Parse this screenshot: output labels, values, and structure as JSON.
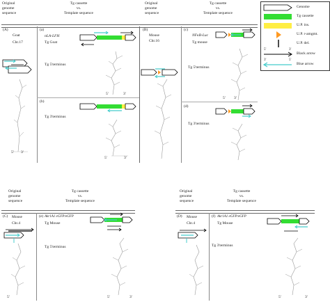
{
  "top": {
    "left_header": {
      "orig": [
        "Original",
        "genome",
        "sequence"
      ],
      "tg": [
        "Tg cassette",
        "vs.",
        "Template sequence"
      ]
    },
    "right_header": {
      "orig": [
        "Original",
        "genome",
        "sequence"
      ],
      "tg": [
        "Tg cassette",
        "vs.",
        "Template sequence"
      ]
    }
  },
  "bottom": {
    "left_header": {
      "orig": [
        "Original",
        "genome",
        "sequence"
      ],
      "tg": [
        "Tg cassette",
        "vs.",
        "Template sequence"
      ]
    },
    "right_header": {
      "orig": [
        "Original",
        "genome",
        "sequence"
      ],
      "tg": [
        "Tg cassette",
        "vs.",
        "Template sequence"
      ]
    }
  },
  "panels": {
    "A": {
      "tag": "(A)",
      "line1": "Goat",
      "line2": "Chr.17"
    },
    "a": {
      "tag": "(a)",
      "gene": "nLA-LFH",
      "line2": "Tg Goat",
      "terminus": "Tg 5'terminus"
    },
    "b": {
      "tag": "(b)",
      "terminus": "Tg 3'terminus"
    },
    "B": {
      "tag": "(B)",
      "line1": "Mouse",
      "line2": "Chr.16"
    },
    "c": {
      "tag": "(c)",
      "gene": "NFκB-Luc",
      "line2": "Tg mouse",
      "terminus": "Tg 5'terminus"
    },
    "d": {
      "tag": "(d)",
      "terminus": "Tg 3'terminus"
    },
    "C": {
      "tag": "(C)",
      "line1": "Mouse",
      "line2": "Chr.4"
    },
    "e": {
      "tag": "(e)",
      "gene": "Akr1A1 eGFP/eGFP",
      "line2": "Tg Mouse",
      "terminus": "Tg 5'terminus"
    },
    "D": {
      "tag": "(D)",
      "line1": "Mouse",
      "line2": "Chr.4"
    },
    "f": {
      "tag": "(f)",
      "gene": "Akr1A1 eGFP/eGFP",
      "line2": "Tg Mouse",
      "terminus": "Tg 3'terminus"
    }
  },
  "ends": {
    "five": "5'",
    "three": "3'"
  },
  "legend": [
    {
      "label": "Genome",
      "symbol": "genome-arrow-icon",
      "color": "#ffffff"
    },
    {
      "label": "Tg cassette",
      "symbol": "tg-cassette-icon",
      "color": "#33dd33"
    },
    {
      "label": "U.P. ins.",
      "symbol": "up-insertion-icon",
      "color": "#ffee44"
    },
    {
      "label": "U.P. r-amgmt.",
      "symbol": "up-rearrangement-icon",
      "color": "#ff9922"
    },
    {
      "label": "U.P. del.",
      "symbol": "up-deletion-icon",
      "color": "#111111"
    },
    {
      "label": "Black arrow",
      "symbol": "black-arrow-icon",
      "color": "#000000"
    },
    {
      "label": "Blue arrow",
      "symbol": "blue-arrow-icon",
      "color": "#44cccc"
    }
  ]
}
